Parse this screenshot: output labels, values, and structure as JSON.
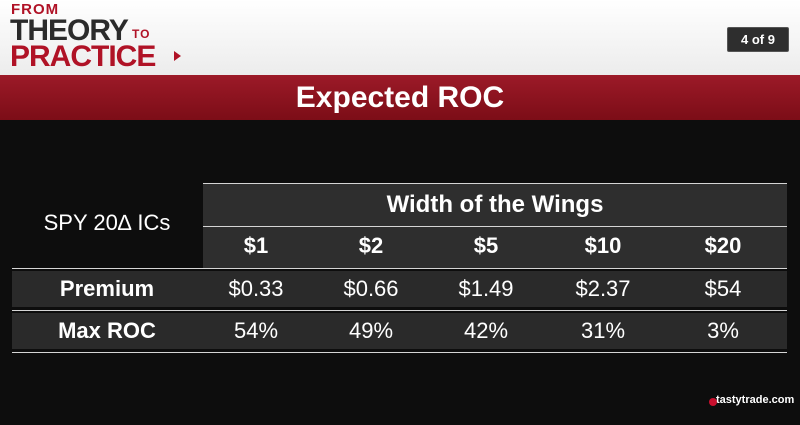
{
  "logo": {
    "from": "FROM",
    "theory": "THEORY",
    "to": "TO",
    "practice": "PRACTICE"
  },
  "slide_counter": "4 of 9",
  "title": "Expected ROC",
  "table": {
    "corner_label": "SPY 20∆ ICs",
    "group_header": "Width of the Wings",
    "columns": [
      "$1",
      "$2",
      "$5",
      "$10",
      "$20"
    ],
    "rows": [
      {
        "label": "Premium",
        "values": [
          "$0.33",
          "$0.66",
          "$1.49",
          "$2.37",
          "$54"
        ]
      },
      {
        "label": "Max ROC",
        "values": [
          "54%",
          "49%",
          "42%",
          "31%",
          "3%"
        ]
      }
    ]
  },
  "brand": "tastytrade.com",
  "colors": {
    "accent": "#9c1a28",
    "background": "#0d0d0d",
    "table_band": "#2a2a2a"
  }
}
